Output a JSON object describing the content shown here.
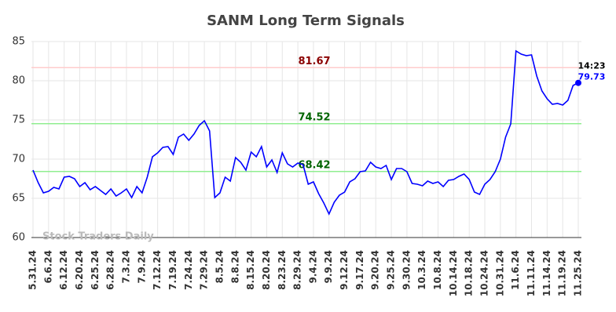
{
  "chart_data": {
    "type": "line",
    "title": "SANM Long Term Signals",
    "watermark": "Stock Traders Daily",
    "categories": [
      "5.31.24",
      null,
      null,
      "6.6.24",
      null,
      null,
      "6.12.24",
      null,
      null,
      "6.20.24",
      null,
      null,
      "6.25.24",
      null,
      null,
      "6.28.24",
      null,
      null,
      "7.3.24",
      null,
      null,
      "7.9.24",
      null,
      null,
      "7.12.24",
      null,
      null,
      "7.19.24",
      null,
      null,
      "7.24.24",
      null,
      null,
      "7.29.24",
      null,
      null,
      "8.5.24",
      null,
      null,
      "8.8.24",
      null,
      null,
      "8.15.24",
      null,
      null,
      "8.20.24",
      null,
      null,
      "8.23.24",
      null,
      null,
      "8.29.24",
      null,
      null,
      "9.4.24",
      null,
      null,
      "9.9.24",
      null,
      null,
      "9.12.24",
      null,
      null,
      "9.17.24",
      null,
      null,
      "9.20.24",
      null,
      null,
      "9.25.24",
      null,
      null,
      "9.30.24",
      null,
      null,
      "10.3.24",
      null,
      null,
      "10.8.24",
      null,
      null,
      "10.14.24",
      null,
      null,
      "10.18.24",
      null,
      null,
      "10.24.24",
      null,
      null,
      "10.31.24",
      null,
      null,
      "11.6.24",
      null,
      null,
      "11.11.24",
      null,
      null,
      "11.14.24",
      null,
      null,
      "11.19.24",
      null,
      null,
      "11.25.24"
    ],
    "values": [
      68.6,
      67.0,
      65.7,
      65.9,
      66.4,
      66.2,
      67.7,
      67.8,
      67.5,
      66.5,
      67.0,
      66.1,
      66.5,
      66.0,
      65.5,
      66.2,
      65.3,
      65.7,
      66.2,
      65.1,
      66.5,
      65.7,
      67.7,
      70.3,
      70.8,
      71.5,
      71.6,
      70.6,
      72.8,
      73.2,
      72.4,
      73.2,
      74.3,
      74.9,
      73.6,
      65.1,
      65.7,
      67.7,
      67.2,
      70.2,
      69.6,
      68.6,
      70.9,
      70.3,
      71.6,
      69.0,
      69.9,
      68.3,
      70.8,
      69.4,
      69.0,
      69.5,
      69.3,
      66.8,
      67.1,
      65.6,
      64.4,
      63.0,
      64.5,
      65.4,
      65.8,
      67.1,
      67.5,
      68.4,
      68.5,
      69.6,
      69.0,
      68.8,
      69.2,
      67.4,
      68.8,
      68.8,
      68.4,
      66.9,
      66.8,
      66.6,
      67.2,
      66.9,
      67.1,
      66.5,
      67.3,
      67.4,
      67.8,
      68.1,
      67.4,
      65.8,
      65.5,
      66.8,
      67.4,
      68.4,
      70.0,
      72.8,
      74.5,
      83.8,
      83.4,
      83.2,
      83.3,
      80.6,
      78.7,
      77.7,
      77.0,
      77.1,
      76.9,
      77.5,
      79.4,
      79.73
    ],
    "color": "#0000ff",
    "last_time": "14:23",
    "hlines": [
      {
        "value": 81.67,
        "line_color": "#ffcccc",
        "label_color": "#8b0000"
      },
      {
        "value": 74.52,
        "line_color": "#90ee90",
        "label_color": "#006400"
      },
      {
        "value": 68.42,
        "line_color": "#90ee90",
        "label_color": "#006400"
      }
    ],
    "ylim": [
      60,
      85
    ],
    "yticks": [
      60,
      65,
      70,
      75,
      80,
      85
    ],
    "grid": true
  }
}
